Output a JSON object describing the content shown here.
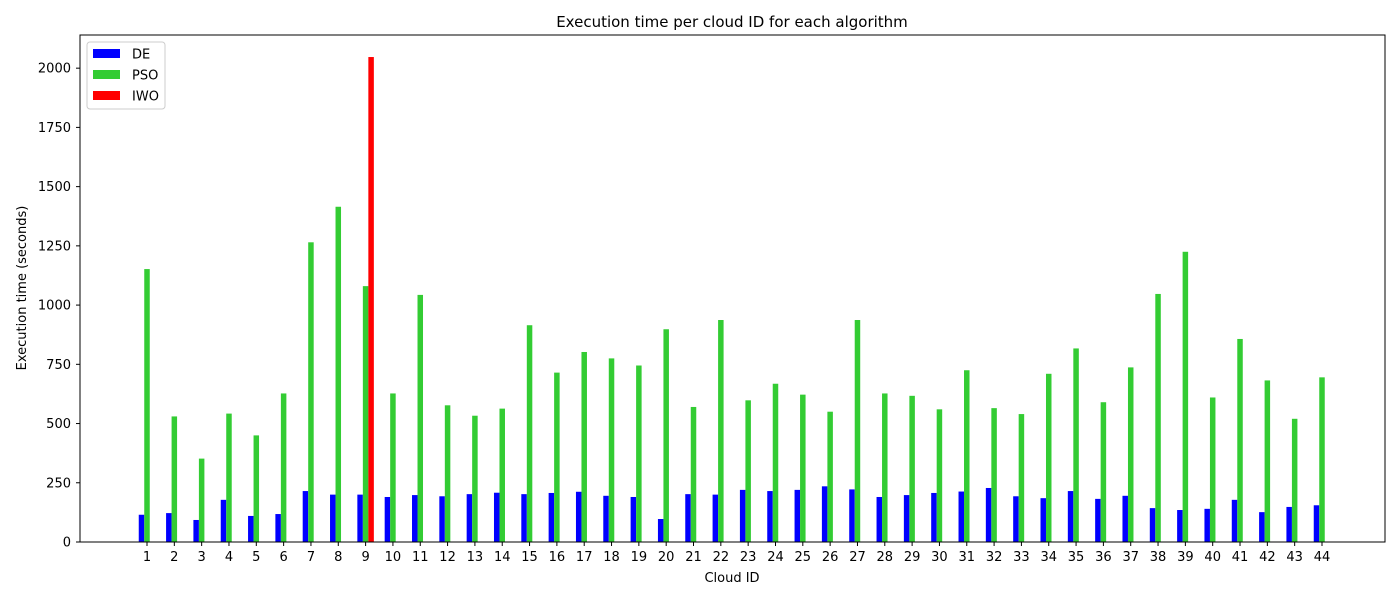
{
  "chart_data": {
    "type": "bar",
    "title": "Execution time per cloud ID for each algorithm",
    "xlabel": "Cloud ID",
    "ylabel": "Execution time (seconds)",
    "ylim": [
      0,
      2140
    ],
    "yticks": [
      0,
      250,
      500,
      750,
      1000,
      1250,
      1500,
      1750,
      2000
    ],
    "grid": false,
    "legend_position": "top-left",
    "categories": [
      "1",
      "2",
      "3",
      "4",
      "5",
      "6",
      "7",
      "8",
      "9",
      "10",
      "11",
      "12",
      "13",
      "14",
      "15",
      "16",
      "17",
      "18",
      "19",
      "20",
      "21",
      "22",
      "23",
      "24",
      "25",
      "26",
      "27",
      "28",
      "29",
      "30",
      "31",
      "32",
      "33",
      "34",
      "35",
      "36",
      "37",
      "38",
      "39",
      "40",
      "41",
      "42",
      "43",
      "44"
    ],
    "series": [
      {
        "name": "DE",
        "color": "#0000ff",
        "values": [
          115,
          122,
          93,
          178,
          110,
          118,
          215,
          200,
          200,
          190,
          198,
          193,
          202,
          208,
          202,
          207,
          212,
          195,
          190,
          97,
          202,
          200,
          220,
          215,
          220,
          235,
          222,
          190,
          198,
          207,
          213,
          228,
          193,
          185,
          215,
          182,
          195,
          143,
          135,
          140,
          178,
          126,
          148,
          155
        ]
      },
      {
        "name": "PSO",
        "color": "#33cc33",
        "values": [
          1152,
          530,
          352,
          542,
          450,
          627,
          1265,
          1415,
          1080,
          627,
          1043,
          577,
          533,
          563,
          915,
          715,
          802,
          775,
          745,
          898,
          570,
          937,
          598,
          668,
          622,
          550,
          937,
          627,
          617,
          560,
          725,
          565,
          540,
          710,
          817,
          590,
          737,
          1047,
          1225,
          610,
          857,
          682,
          520,
          695
        ]
      },
      {
        "name": "IWO",
        "color": "#ff0000",
        "values": [
          0,
          0,
          0,
          0,
          0,
          0,
          0,
          0,
          2047,
          0,
          0,
          0,
          0,
          0,
          0,
          0,
          0,
          0,
          0,
          0,
          0,
          0,
          0,
          0,
          0,
          0,
          0,
          0,
          0,
          0,
          0,
          0,
          0,
          0,
          0,
          0,
          0,
          0,
          0,
          0,
          0,
          0,
          0,
          0
        ]
      }
    ]
  }
}
